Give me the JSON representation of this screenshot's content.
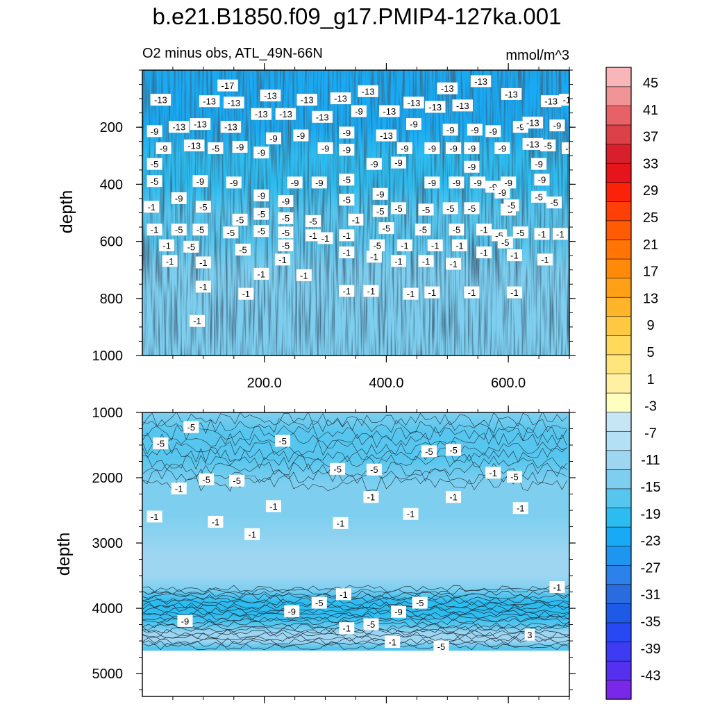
{
  "chart_data": {
    "type": "heatmap",
    "title": "b.e21.B1850.f09_g17.PMIP4-127ka.001",
    "subtitle_left": "O2 minus obs, ATL_49N-66N",
    "subtitle_right": "mmol/m^3",
    "xlim": [
      0,
      700
    ],
    "x_ticks": [
      "200.0",
      "400.0",
      "600.0"
    ],
    "x_tick_values": [
      200,
      400,
      600
    ],
    "panels": [
      {
        "name": "upper",
        "ylabel": "depth",
        "ylim": [
          0,
          1000
        ],
        "y_ticks": [
          "200",
          "400",
          "600",
          "800",
          "1000"
        ],
        "y_tick_values": [
          200,
          400,
          600,
          800,
          1000
        ],
        "profile": [
          {
            "depth": 0,
            "value": -13
          },
          {
            "depth": 100,
            "value": -13
          },
          {
            "depth": 200,
            "value": -12
          },
          {
            "depth": 300,
            "value": -10
          },
          {
            "depth": 400,
            "value": -8
          },
          {
            "depth": 500,
            "value": -6
          },
          {
            "depth": 600,
            "value": -4
          },
          {
            "depth": 700,
            "value": -2
          },
          {
            "depth": 850,
            "value": 0
          },
          {
            "depth": 1000,
            "value": 0
          }
        ],
        "contour_labels": [
          {
            "x": 140,
            "d": 55,
            "t": "-17"
          },
          {
            "x": 30,
            "d": 105,
            "t": "-13"
          },
          {
            "x": 110,
            "d": 110,
            "t": "-13"
          },
          {
            "x": 150,
            "d": 115,
            "t": "-13"
          },
          {
            "x": 210,
            "d": 90,
            "t": "-13"
          },
          {
            "x": 270,
            "d": 105,
            "t": "-13"
          },
          {
            "x": 325,
            "d": 100,
            "t": "-13"
          },
          {
            "x": 370,
            "d": 75,
            "t": "-13"
          },
          {
            "x": 500,
            "d": 65,
            "t": "-13"
          },
          {
            "x": 555,
            "d": 40,
            "t": "-13"
          },
          {
            "x": 605,
            "d": 85,
            "t": "-13"
          },
          {
            "x": 670,
            "d": 110,
            "t": "-13"
          },
          {
            "x": 700,
            "d": 105,
            "t": "-13"
          },
          {
            "x": 445,
            "d": 115,
            "t": "-13"
          },
          {
            "x": 480,
            "d": 130,
            "t": "-13"
          },
          {
            "x": 525,
            "d": 125,
            "t": "-13"
          },
          {
            "x": 405,
            "d": 145,
            "t": "-13"
          },
          {
            "x": 195,
            "d": 155,
            "t": "-13"
          },
          {
            "x": 235,
            "d": 155,
            "t": "-13"
          },
          {
            "x": 295,
            "d": 165,
            "t": "-13"
          },
          {
            "x": 60,
            "d": 200,
            "t": "-13"
          },
          {
            "x": 95,
            "d": 190,
            "t": "-13"
          },
          {
            "x": 145,
            "d": 200,
            "t": "-13"
          },
          {
            "x": 400,
            "d": 230,
            "t": "-13"
          },
          {
            "x": 620,
            "d": 200,
            "t": "-9"
          },
          {
            "x": 355,
            "d": 145,
            "t": "-9"
          },
          {
            "x": 445,
            "d": 190,
            "t": "-9"
          },
          {
            "x": 505,
            "d": 210,
            "t": "-9"
          },
          {
            "x": 545,
            "d": 210,
            "t": "-9"
          },
          {
            "x": 575,
            "d": 215,
            "t": "-9"
          },
          {
            "x": 640,
            "d": 185,
            "t": "-13"
          },
          {
            "x": 680,
            "d": 195,
            "t": "-9"
          },
          {
            "x": 715,
            "d": 205,
            "t": "-9"
          },
          {
            "x": 20,
            "d": 215,
            "t": "-9"
          },
          {
            "x": 335,
            "d": 220,
            "t": "-9"
          },
          {
            "x": 260,
            "d": 230,
            "t": "-9"
          },
          {
            "x": 215,
            "d": 240,
            "t": "-9"
          },
          {
            "x": 85,
            "d": 265,
            "t": "-13"
          },
          {
            "x": 120,
            "d": 275,
            "t": "-5"
          },
          {
            "x": 160,
            "d": 270,
            "t": "-9"
          },
          {
            "x": 35,
            "d": 275,
            "t": "-9"
          },
          {
            "x": 195,
            "d": 290,
            "t": "-9"
          },
          {
            "x": 300,
            "d": 275,
            "t": "-9"
          },
          {
            "x": 335,
            "d": 280,
            "t": "-9"
          },
          {
            "x": 430,
            "d": 275,
            "t": "-9"
          },
          {
            "x": 475,
            "d": 275,
            "t": "-9"
          },
          {
            "x": 510,
            "d": 275,
            "t": "-9"
          },
          {
            "x": 540,
            "d": 275,
            "t": "-9"
          },
          {
            "x": 590,
            "d": 275,
            "t": "-9"
          },
          {
            "x": 640,
            "d": 260,
            "t": "-13"
          },
          {
            "x": 665,
            "d": 265,
            "t": "-5"
          },
          {
            "x": 700,
            "d": 275,
            "t": "-9"
          },
          {
            "x": 380,
            "d": 330,
            "t": "-9"
          },
          {
            "x": 420,
            "d": 325,
            "t": "-9"
          },
          {
            "x": 540,
            "d": 340,
            "t": "-9"
          },
          {
            "x": 650,
            "d": 330,
            "t": "-9"
          },
          {
            "x": 20,
            "d": 390,
            "t": "-5"
          },
          {
            "x": 95,
            "d": 390,
            "t": "-9"
          },
          {
            "x": 150,
            "d": 395,
            "t": "-9"
          },
          {
            "x": 250,
            "d": 395,
            "t": "-9"
          },
          {
            "x": 290,
            "d": 395,
            "t": "-9"
          },
          {
            "x": 335,
            "d": 385,
            "t": "-5"
          },
          {
            "x": 475,
            "d": 395,
            "t": "-9"
          },
          {
            "x": 515,
            "d": 395,
            "t": "-9"
          },
          {
            "x": 550,
            "d": 395,
            "t": "-9"
          },
          {
            "x": 575,
            "d": 410,
            "t": "-9"
          },
          {
            "x": 600,
            "d": 395,
            "t": "-9"
          },
          {
            "x": 655,
            "d": 385,
            "t": "-9"
          },
          {
            "x": 60,
            "d": 450,
            "t": "-9"
          },
          {
            "x": 195,
            "d": 440,
            "t": "-9"
          },
          {
            "x": 235,
            "d": 460,
            "t": "-9"
          },
          {
            "x": 335,
            "d": 455,
            "t": "-5"
          },
          {
            "x": 390,
            "d": 435,
            "t": "-9"
          },
          {
            "x": 590,
            "d": 430,
            "t": "-9"
          },
          {
            "x": 15,
            "d": 480,
            "t": "-1"
          },
          {
            "x": 100,
            "d": 480,
            "t": "-5"
          },
          {
            "x": 160,
            "d": 525,
            "t": "-5"
          },
          {
            "x": 195,
            "d": 505,
            "t": "-5"
          },
          {
            "x": 235,
            "d": 520,
            "t": "-5"
          },
          {
            "x": 390,
            "d": 495,
            "t": "-5"
          },
          {
            "x": 420,
            "d": 485,
            "t": "-5"
          },
          {
            "x": 465,
            "d": 490,
            "t": "-5"
          },
          {
            "x": 505,
            "d": 485,
            "t": "-5"
          },
          {
            "x": 540,
            "d": 485,
            "t": "-5"
          },
          {
            "x": 600,
            "d": 490,
            "t": "-5"
          },
          {
            "x": 650,
            "d": 445,
            "t": "-5"
          },
          {
            "x": 605,
            "d": 475,
            "t": "-5"
          },
          {
            "x": 675,
            "d": 465,
            "t": "-5"
          },
          {
            "x": 280,
            "d": 530,
            "t": "-5"
          },
          {
            "x": 350,
            "d": 525,
            "t": "-1"
          },
          {
            "x": 20,
            "d": 560,
            "t": "-1"
          },
          {
            "x": 60,
            "d": 560,
            "t": "-5"
          },
          {
            "x": 95,
            "d": 560,
            "t": "-5"
          },
          {
            "x": 145,
            "d": 570,
            "t": "-5"
          },
          {
            "x": 195,
            "d": 565,
            "t": "-5"
          },
          {
            "x": 235,
            "d": 570,
            "t": "-5"
          },
          {
            "x": 400,
            "d": 555,
            "t": "-5"
          },
          {
            "x": 460,
            "d": 560,
            "t": "-5"
          },
          {
            "x": 515,
            "d": 560,
            "t": "-5"
          },
          {
            "x": 560,
            "d": 560,
            "t": "-1"
          },
          {
            "x": 585,
            "d": 580,
            "t": "-5"
          },
          {
            "x": 620,
            "d": 570,
            "t": "-5"
          },
          {
            "x": 655,
            "d": 575,
            "t": "-1"
          },
          {
            "x": 685,
            "d": 575,
            "t": "-1"
          },
          {
            "x": 280,
            "d": 580,
            "t": "-1"
          },
          {
            "x": 335,
            "d": 580,
            "t": "-1"
          },
          {
            "x": 40,
            "d": 615,
            "t": "-1"
          },
          {
            "x": 80,
            "d": 620,
            "t": "-5"
          },
          {
            "x": 165,
            "d": 630,
            "t": "-5"
          },
          {
            "x": 235,
            "d": 615,
            "t": "-5"
          },
          {
            "x": 385,
            "d": 615,
            "t": "-5"
          },
          {
            "x": 430,
            "d": 615,
            "t": "-1"
          },
          {
            "x": 480,
            "d": 615,
            "t": "-1"
          },
          {
            "x": 520,
            "d": 615,
            "t": "-1"
          },
          {
            "x": 595,
            "d": 605,
            "t": "-5"
          },
          {
            "x": 560,
            "d": 640,
            "t": "-1"
          },
          {
            "x": 335,
            "d": 640,
            "t": "-1"
          },
          {
            "x": 380,
            "d": 655,
            "t": "-1"
          },
          {
            "x": 45,
            "d": 670,
            "t": "-1"
          },
          {
            "x": 100,
            "d": 675,
            "t": "-1"
          },
          {
            "x": 230,
            "d": 665,
            "t": "-1"
          },
          {
            "x": 420,
            "d": 670,
            "t": "-1"
          },
          {
            "x": 465,
            "d": 670,
            "t": "-1"
          },
          {
            "x": 510,
            "d": 680,
            "t": "-1"
          },
          {
            "x": 610,
            "d": 650,
            "t": "-1"
          },
          {
            "x": 660,
            "d": 665,
            "t": "-1"
          },
          {
            "x": 195,
            "d": 715,
            "t": "-1"
          },
          {
            "x": 265,
            "d": 720,
            "t": "-1"
          },
          {
            "x": 20,
            "d": 330,
            "t": "-5"
          },
          {
            "x": 300,
            "d": 590,
            "t": "-1"
          },
          {
            "x": 100,
            "d": 760,
            "t": "-1"
          },
          {
            "x": 170,
            "d": 785,
            "t": "-1"
          },
          {
            "x": 335,
            "d": 775,
            "t": "-1"
          },
          {
            "x": 375,
            "d": 775,
            "t": "-1"
          },
          {
            "x": 440,
            "d": 785,
            "t": "-1"
          },
          {
            "x": 475,
            "d": 780,
            "t": "-1"
          },
          {
            "x": 540,
            "d": 780,
            "t": "-1"
          },
          {
            "x": 610,
            "d": 780,
            "t": "-1"
          },
          {
            "x": 90,
            "d": 880,
            "t": "-1"
          }
        ]
      },
      {
        "name": "lower",
        "ylabel": "depth",
        "ylim": [
          1000,
          5350
        ],
        "y_ticks": [
          "1000",
          "2000",
          "3000",
          "4000",
          "5000"
        ],
        "y_tick_values": [
          1000,
          2000,
          3000,
          4000,
          5000
        ],
        "no_data_below_depth": 4650,
        "profile": [
          {
            "depth": 1000,
            "value": -2
          },
          {
            "depth": 1300,
            "value": -5
          },
          {
            "depth": 1700,
            "value": -6
          },
          {
            "depth": 2100,
            "value": -3
          },
          {
            "depth": 2600,
            "value": -1
          },
          {
            "depth": 3200,
            "value": 1
          },
          {
            "depth": 3500,
            "value": 2
          },
          {
            "depth": 3700,
            "value": -1
          },
          {
            "depth": 3900,
            "value": -8
          },
          {
            "depth": 4100,
            "value": -11
          },
          {
            "depth": 4250,
            "value": -6
          },
          {
            "depth": 4380,
            "value": 3
          },
          {
            "depth": 4500,
            "value": 1
          },
          {
            "depth": 4600,
            "value": -5
          }
        ],
        "contour_labels": [
          {
            "x": 80,
            "d": 1230,
            "t": "-5"
          },
          {
            "x": 30,
            "d": 1480,
            "t": "-5"
          },
          {
            "x": 230,
            "d": 1440,
            "t": "-5"
          },
          {
            "x": 470,
            "d": 1600,
            "t": "-5"
          },
          {
            "x": 510,
            "d": 1580,
            "t": "-5"
          },
          {
            "x": 320,
            "d": 1870,
            "t": "-5"
          },
          {
            "x": 380,
            "d": 1880,
            "t": "-5"
          },
          {
            "x": 105,
            "d": 2030,
            "t": "-5"
          },
          {
            "x": 155,
            "d": 2050,
            "t": "-5"
          },
          {
            "x": 60,
            "d": 2170,
            "t": "-1"
          },
          {
            "x": 575,
            "d": 1930,
            "t": "-1"
          },
          {
            "x": 610,
            "d": 1990,
            "t": "-5"
          },
          {
            "x": 215,
            "d": 2440,
            "t": "-1"
          },
          {
            "x": 375,
            "d": 2300,
            "t": "-1"
          },
          {
            "x": 510,
            "d": 2300,
            "t": "-1"
          },
          {
            "x": 440,
            "d": 2560,
            "t": "-1"
          },
          {
            "x": 620,
            "d": 2470,
            "t": "-1"
          },
          {
            "x": 20,
            "d": 2600,
            "t": "-1"
          },
          {
            "x": 120,
            "d": 2680,
            "t": "-1"
          },
          {
            "x": 325,
            "d": 2700,
            "t": "-1"
          },
          {
            "x": 180,
            "d": 2870,
            "t": "-1"
          },
          {
            "x": 680,
            "d": 3680,
            "t": "-1"
          },
          {
            "x": 330,
            "d": 3790,
            "t": "-1"
          },
          {
            "x": 290,
            "d": 3920,
            "t": "-5"
          },
          {
            "x": 455,
            "d": 3920,
            "t": "-5"
          },
          {
            "x": 245,
            "d": 4050,
            "t": "-9"
          },
          {
            "x": 420,
            "d": 4060,
            "t": "-9"
          },
          {
            "x": 70,
            "d": 4200,
            "t": "-9"
          },
          {
            "x": 335,
            "d": 4310,
            "t": "-1"
          },
          {
            "x": 375,
            "d": 4250,
            "t": "-5"
          },
          {
            "x": 635,
            "d": 4410,
            "t": "3"
          },
          {
            "x": 410,
            "d": 4520,
            "t": "-1"
          },
          {
            "x": 490,
            "d": 4590,
            "t": "-5"
          }
        ]
      }
    ],
    "colorbar": {
      "labels": [
        "45",
        "41",
        "37",
        "33",
        "29",
        "25",
        "21",
        "17",
        "13",
        "9",
        "5",
        "1",
        "-3",
        "-7",
        "-11",
        "-15",
        "-19",
        "-23",
        "-27",
        "-31",
        "-35",
        "-39",
        "-43"
      ],
      "colors": [
        "#7a28e8",
        "#5530ee",
        "#3d3cf2",
        "#2848f4",
        "#1e5ae6",
        "#2a6cde",
        "#2c82ea",
        "#1e96f0",
        "#18aaf4",
        "#2cbcf0",
        "#56c6ee",
        "#7ecfef",
        "#9ed6f2",
        "#b4e0f6",
        "#c6e6f6",
        "#fefebe",
        "#fff0a2",
        "#ffe57c",
        "#ffd85c",
        "#ffc842",
        "#ffb42a",
        "#ffa016",
        "#ff8a0a",
        "#ff7404",
        "#ff5a04",
        "#ff4006",
        "#fb220a",
        "#e8141c",
        "#d8202c",
        "#dc4048",
        "#e66266",
        "#f09496",
        "#f8b6b8"
      ]
    }
  }
}
